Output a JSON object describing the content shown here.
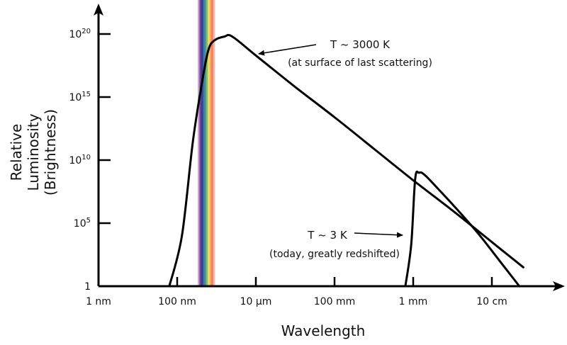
{
  "chart_data": {
    "type": "line",
    "title": "",
    "xlabel": "Wavelength",
    "ylabel": [
      "Relative",
      "Luminosity",
      "(Brightness)"
    ],
    "x_scale": "log",
    "y_scale": "log",
    "x_ticks": [
      {
        "label": "1 nm",
        "log10_m": -9
      },
      {
        "label": "100 nm",
        "log10_m": -7
      },
      {
        "label": "10 µm",
        "log10_m": -5
      },
      {
        "label": "100 mm",
        "log10_m": -3
      },
      {
        "label": "1 mm",
        "log10_m": -1
      },
      {
        "label": "10 cm",
        "log10_m": 1
      }
    ],
    "y_ticks": [
      {
        "base": "1",
        "exp": "",
        "log10": 0
      },
      {
        "base": "10",
        "exp": "5",
        "log10": 5
      },
      {
        "base": "10",
        "exp": "10",
        "log10": 10
      },
      {
        "base": "10",
        "exp": "15",
        "log10": 15
      },
      {
        "base": "10",
        "exp": "20",
        "log10": 20
      }
    ],
    "xlim_log10": [
      -9,
      3.3
    ],
    "ylim_log10": [
      0,
      22
    ],
    "grid": false,
    "visible_band": {
      "label": "visible spectrum",
      "log10_from": -6.5,
      "log10_to": -6.1,
      "colors": [
        "#c9a6d6",
        "#7b3f98",
        "#3c3a8c",
        "#3f6db0",
        "#4a9a8a",
        "#8cc05a",
        "#f2e070",
        "#f5a860",
        "#ef7a5c",
        "#f4b8a8"
      ]
    },
    "series": [
      {
        "name": "T ~ 3000 K",
        "points": [
          [
            -7.2,
            0
          ],
          [
            -6.88,
            4
          ],
          [
            -6.6,
            11.5
          ],
          [
            -6.35,
            16.5
          ],
          [
            -6.2,
            18.8
          ],
          [
            -6.05,
            19.5
          ],
          [
            -5.8,
            19.8
          ],
          [
            -5.6,
            19.8
          ],
          [
            -5.0,
            18.3
          ],
          [
            -4.0,
            15.8
          ],
          [
            -3.0,
            13.4
          ],
          [
            -2.0,
            10.9
          ],
          [
            -1.0,
            8.4
          ],
          [
            0.0,
            6.0
          ],
          [
            1.0,
            3.5
          ],
          [
            1.8,
            1.5
          ]
        ]
      },
      {
        "name": "T ~ 3 K",
        "points": [
          [
            -1.2,
            0
          ],
          [
            -1.05,
            3.3
          ],
          [
            -0.95,
            8.5
          ],
          [
            -0.85,
            9.0
          ],
          [
            -0.7,
            8.8
          ],
          [
            -0.3,
            7.5
          ],
          [
            0.2,
            5.8
          ],
          [
            0.7,
            4.0
          ],
          [
            1.2,
            2.0
          ],
          [
            1.7,
            0
          ]
        ]
      }
    ],
    "annotations": [
      {
        "text": "T ~ 3000 K",
        "subtext": "(at surface of last scattering)",
        "target_series": "T ~ 3000 K"
      },
      {
        "text": "T ~ 3 K",
        "subtext": "(today, greatly redshifted)",
        "target_series": "T ~ 3 K"
      }
    ]
  }
}
